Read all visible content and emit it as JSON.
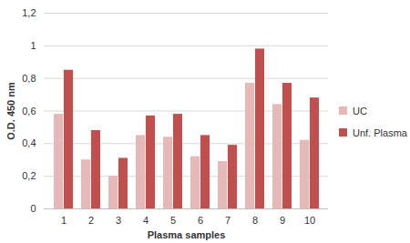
{
  "chart_data": {
    "type": "bar",
    "x_label": "Plasma samples",
    "y_label": "O.D. 450 nm",
    "categories": [
      "1",
      "2",
      "3",
      "4",
      "5",
      "6",
      "7",
      "8",
      "9",
      "10"
    ],
    "series": [
      {
        "name": "UC",
        "color": "#e6b9b8",
        "values": [
          0.58,
          0.3,
          0.2,
          0.45,
          0.44,
          0.32,
          0.29,
          0.77,
          0.64,
          0.42
        ]
      },
      {
        "name": "Unf. Plasma",
        "color": "#c0504d",
        "values": [
          0.85,
          0.48,
          0.31,
          0.57,
          0.58,
          0.45,
          0.39,
          0.98,
          0.77,
          0.68
        ]
      }
    ],
    "ylim": [
      0,
      1.2
    ],
    "yticks": [
      0,
      {
        "value": 0.2,
        "label": "0,2"
      },
      {
        "value": 0.4,
        "label": "0,4"
      },
      {
        "value": 0.6,
        "label": "0,6"
      },
      {
        "value": 0.8,
        "label": "0,8"
      },
      1,
      {
        "value": 1.2,
        "label": "1,2"
      }
    ],
    "grid": true,
    "legend": "right"
  }
}
